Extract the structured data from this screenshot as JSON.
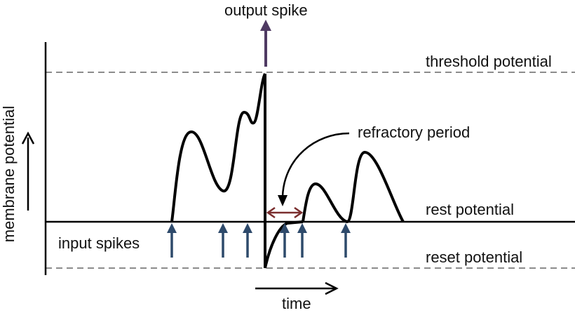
{
  "labels": {
    "output_spike": "output spike",
    "threshold_potential": "threshold potential",
    "refractory_period": "refractory period",
    "rest_potential": "rest potential",
    "reset_potential": "reset potential",
    "input_spikes": "input spikes",
    "y_axis": "membrane potential",
    "x_axis": "time"
  },
  "colors": {
    "curve": "#000000",
    "dashed_line": "#8c8c8c",
    "input_arrow": "#2e4a6b",
    "output_arrow": "#4f3a63",
    "refractory_arrow": "#7a2e2e"
  }
}
